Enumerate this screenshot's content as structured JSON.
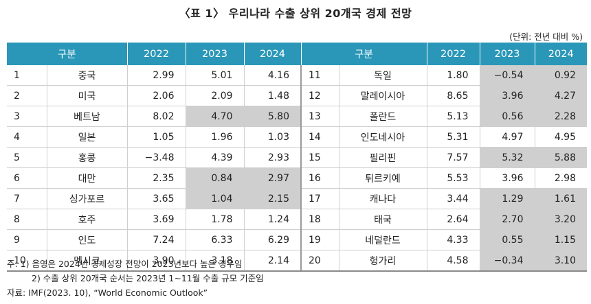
{
  "title": "〈표 1〉 우리나라 수출 상위 20개국 경제 전망",
  "unit": "(단위: 전년 대비 %)",
  "headers": [
    "구분",
    "2022",
    "2023",
    "2024",
    "구분",
    "2022",
    "2023",
    "2024"
  ],
  "rows": [
    {
      "r1": "1",
      "c1": "중국",
      "a1": "2.99",
      "b1": "5.01",
      "d1": "4.16",
      "r2": "11",
      "c2": "독일",
      "a2": "1.80",
      "b2": "−0.54",
      "d2": "0.92"
    },
    {
      "r1": "2",
      "c1": "미국",
      "a1": "2.06",
      "b1": "2.09",
      "d1": "1.48",
      "r2": "12",
      "c2": "말레이시아",
      "a2": "8.65",
      "b2": "3.96",
      "d2": "4.27"
    },
    {
      "r1": "3",
      "c1": "베트남",
      "a1": "8.02",
      "b1": "4.70",
      "d1": "5.80",
      "r2": "13",
      "c2": "폴란드",
      "a2": "5.13",
      "b2": "0.56",
      "d2": "2.28"
    },
    {
      "r1": "4",
      "c1": "일본",
      "a1": "1.05",
      "b1": "1.96",
      "d1": "1.03",
      "r2": "14",
      "c2": "인도네시아",
      "a2": "5.31",
      "b2": "4.97",
      "d2": "4.95"
    },
    {
      "r1": "5",
      "c1": "홍콩",
      "a1": "−3.48",
      "b1": "4.39",
      "d1": "2.93",
      "r2": "15",
      "c2": "필리핀",
      "a2": "7.57",
      "b2": "5.32",
      "d2": "5.88"
    },
    {
      "r1": "6",
      "c1": "대만",
      "a1": "2.35",
      "b1": "0.84",
      "d1": "2.97",
      "r2": "16",
      "c2": "튀르키예",
      "a2": "5.53",
      "b2": "3.96",
      "d2": "2.98"
    },
    {
      "r1": "7",
      "c1": "싱가포르",
      "a1": "3.65",
      "b1": "1.04",
      "d1": "2.15",
      "r2": "17",
      "c2": "캐나다",
      "a2": "3.44",
      "b2": "1.29",
      "d2": "1.61"
    },
    {
      "r1": "8",
      "c1": "호주",
      "a1": "3.69",
      "b1": "1.78",
      "d1": "1.24",
      "r2": "18",
      "c2": "태국",
      "a2": "2.64",
      "b2": "2.70",
      "d2": "3.20"
    },
    {
      "r1": "9",
      "c1": "인도",
      "a1": "7.24",
      "b1": "6.33",
      "d1": "6.29",
      "r2": "19",
      "c2": "네덜란드",
      "a2": "4.33",
      "b2": "0.55",
      "d2": "1.15"
    },
    {
      "r1": "10",
      "c1": "멕시코",
      "a1": "3.90",
      "b1": "3.18",
      "d1": "2.14",
      "r2": "20",
      "c2": "헝가리",
      "a2": "4.58",
      "b2": "−0.34",
      "d2": "3.10"
    }
  ],
  "notes": {
    "line1": "주: 1) 음영은 2024년 경제성장 전망이 2023년보다 높은 경우임",
    "line2": "2) 수출 상위 20개국 순서는 2023년 1~11월 수출 규모 기준임",
    "line3": "자료: IMF(2023. 10), “World Economic Outlook”"
  },
  "colors": {
    "header_bg": "#2a97b8",
    "highlight": "#cfcfcf"
  }
}
